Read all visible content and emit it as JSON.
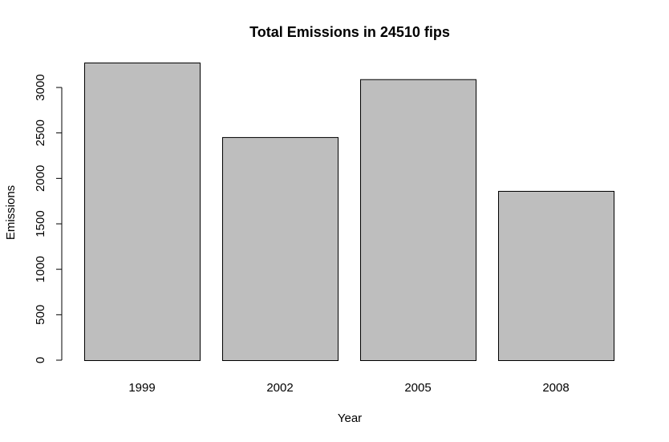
{
  "chart_data": {
    "type": "bar",
    "title": "Total Emissions in 24510 fips",
    "xlabel": "Year",
    "ylabel": "Emissions",
    "categories": [
      "1999",
      "2002",
      "2005",
      "2008"
    ],
    "values": [
      3274,
      2454,
      3091,
      1862
    ],
    "ylim": [
      0,
      3274
    ],
    "yticks": [
      0,
      500,
      1000,
      1500,
      2000,
      2500,
      3000
    ],
    "ytick_labels": [
      "0",
      "500",
      "1000",
      "1500",
      "2000",
      "2500",
      "3000"
    ],
    "grid": false,
    "legend": "none",
    "bar_fill": "#bebebe",
    "bar_stroke": "#000000"
  }
}
